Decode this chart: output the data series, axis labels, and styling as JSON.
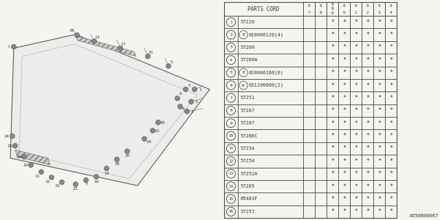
{
  "title": "A550B00067",
  "parts_cord_header": "PARTS CORD",
  "year_cols": [
    "8\n7",
    "8\n8",
    "8\n9\n0",
    "9\n0",
    "9\n1",
    "9\n2",
    "9\n3",
    "9\n4"
  ],
  "rows": [
    {
      "num": 1,
      "code": "57220",
      "special": null,
      "stars": [
        false,
        false,
        true,
        true,
        true,
        true,
        true,
        true
      ]
    },
    {
      "num": 2,
      "code": "010006120(4)",
      "special": "B",
      "stars": [
        false,
        false,
        true,
        true,
        true,
        true,
        true,
        true
      ]
    },
    {
      "num": 3,
      "code": "57260",
      "special": null,
      "stars": [
        false,
        false,
        true,
        true,
        true,
        true,
        true,
        true
      ]
    },
    {
      "num": 4,
      "code": "57260A",
      "special": null,
      "stars": [
        false,
        false,
        true,
        true,
        true,
        true,
        true,
        true
      ]
    },
    {
      "num": 5,
      "code": "010006160(6)",
      "special": "B",
      "stars": [
        false,
        false,
        true,
        true,
        true,
        true,
        true,
        true
      ]
    },
    {
      "num": 6,
      "code": "031106000(2)",
      "special": "W",
      "stars": [
        false,
        false,
        true,
        true,
        true,
        true,
        true,
        true
      ]
    },
    {
      "num": 7,
      "code": "57251",
      "special": null,
      "stars": [
        false,
        false,
        true,
        true,
        true,
        true,
        true,
        true
      ]
    },
    {
      "num": 8,
      "code": "57287",
      "special": null,
      "stars": [
        false,
        false,
        true,
        true,
        true,
        true,
        true,
        true
      ]
    },
    {
      "num": 9,
      "code": "57287",
      "special": null,
      "stars": [
        false,
        false,
        true,
        true,
        true,
        true,
        true,
        true
      ]
    },
    {
      "num": 10,
      "code": "57286C",
      "special": null,
      "stars": [
        false,
        false,
        true,
        true,
        true,
        true,
        true,
        true
      ]
    },
    {
      "num": 11,
      "code": "57254",
      "special": null,
      "stars": [
        false,
        false,
        true,
        true,
        true,
        true,
        true,
        true
      ]
    },
    {
      "num": 12,
      "code": "57254",
      "special": null,
      "stars": [
        false,
        false,
        true,
        true,
        true,
        true,
        true,
        true
      ]
    },
    {
      "num": 13,
      "code": "57252A",
      "special": null,
      "stars": [
        false,
        false,
        true,
        true,
        true,
        true,
        true,
        true
      ]
    },
    {
      "num": 14,
      "code": "57285",
      "special": null,
      "stars": [
        false,
        false,
        true,
        true,
        true,
        true,
        true,
        true
      ]
    },
    {
      "num": 15,
      "code": "65483F",
      "special": null,
      "stars": [
        false,
        false,
        true,
        true,
        true,
        true,
        true,
        true
      ]
    },
    {
      "num": 16,
      "code": "57257",
      "special": null,
      "stars": [
        false,
        false,
        true,
        true,
        true,
        true,
        true,
        true
      ]
    }
  ],
  "bg_color": "#f5f5f0",
  "table_bg": "#f5f5f0",
  "line_color": "#555555",
  "text_color": "#333333"
}
